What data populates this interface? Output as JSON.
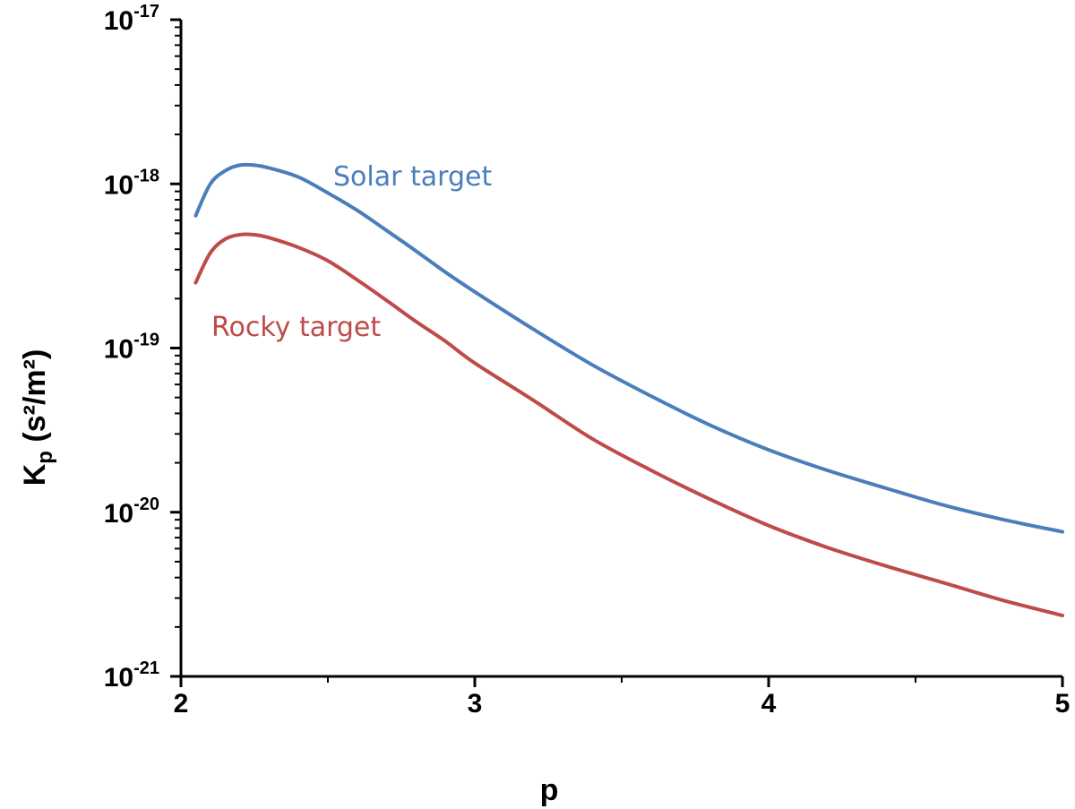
{
  "chart_data": {
    "type": "line",
    "xlabel": "p",
    "ylabel": {
      "base": "K",
      "sub": "p",
      "units": " (s²/m²)"
    },
    "xlim": [
      2,
      5
    ],
    "ylim": [
      1e-21,
      1e-17
    ],
    "yscale": "log",
    "x_ticks": [
      "2",
      "3",
      "4",
      "5"
    ],
    "y_ticks": [
      {
        "base": "10",
        "exp": "-21"
      },
      {
        "base": "10",
        "exp": "-20"
      },
      {
        "base": "10",
        "exp": "-19"
      },
      {
        "base": "10",
        "exp": "-18"
      },
      {
        "base": "10",
        "exp": "-17"
      }
    ],
    "grid": false,
    "series": [
      {
        "name": "Solar target",
        "color": "#4a7ebb",
        "x": [
          2.05,
          2.1,
          2.15,
          2.2,
          2.25,
          2.3,
          2.4,
          2.5,
          2.6,
          2.7,
          2.8,
          2.9,
          3.0,
          3.2,
          3.4,
          3.6,
          3.8,
          4.0,
          4.2,
          4.4,
          4.6,
          4.8,
          5.0
        ],
        "y": [
          6.4e-19,
          1e-18,
          1.2e-18,
          1.3e-18,
          1.3e-18,
          1.25e-18,
          1.1e-18,
          8.8e-19,
          6.9e-19,
          5.2e-19,
          3.9e-19,
          2.9e-19,
          2.2e-19,
          1.3e-19,
          7.9e-20,
          5.1e-20,
          3.4e-20,
          2.4e-20,
          1.8e-20,
          1.4e-20,
          1.1e-20,
          9e-21,
          7.6e-21
        ]
      },
      {
        "name": "Rocky target",
        "color": "#be4b48",
        "x": [
          2.05,
          2.1,
          2.15,
          2.2,
          2.25,
          2.3,
          2.4,
          2.5,
          2.6,
          2.7,
          2.8,
          2.9,
          3.0,
          3.2,
          3.4,
          3.6,
          3.8,
          4.0,
          4.2,
          4.4,
          4.6,
          4.8,
          5.0
        ],
        "y": [
          2.5e-19,
          3.8e-19,
          4.6e-19,
          4.9e-19,
          4.9e-19,
          4.7e-19,
          4.1e-19,
          3.4e-19,
          2.6e-19,
          1.95e-19,
          1.45e-19,
          1.1e-19,
          8.1e-20,
          4.8e-20,
          2.8e-20,
          1.8e-20,
          1.2e-20,
          8.3e-21,
          6.1e-21,
          4.7e-21,
          3.7e-21,
          2.9e-21,
          2.35e-21
        ]
      }
    ]
  }
}
